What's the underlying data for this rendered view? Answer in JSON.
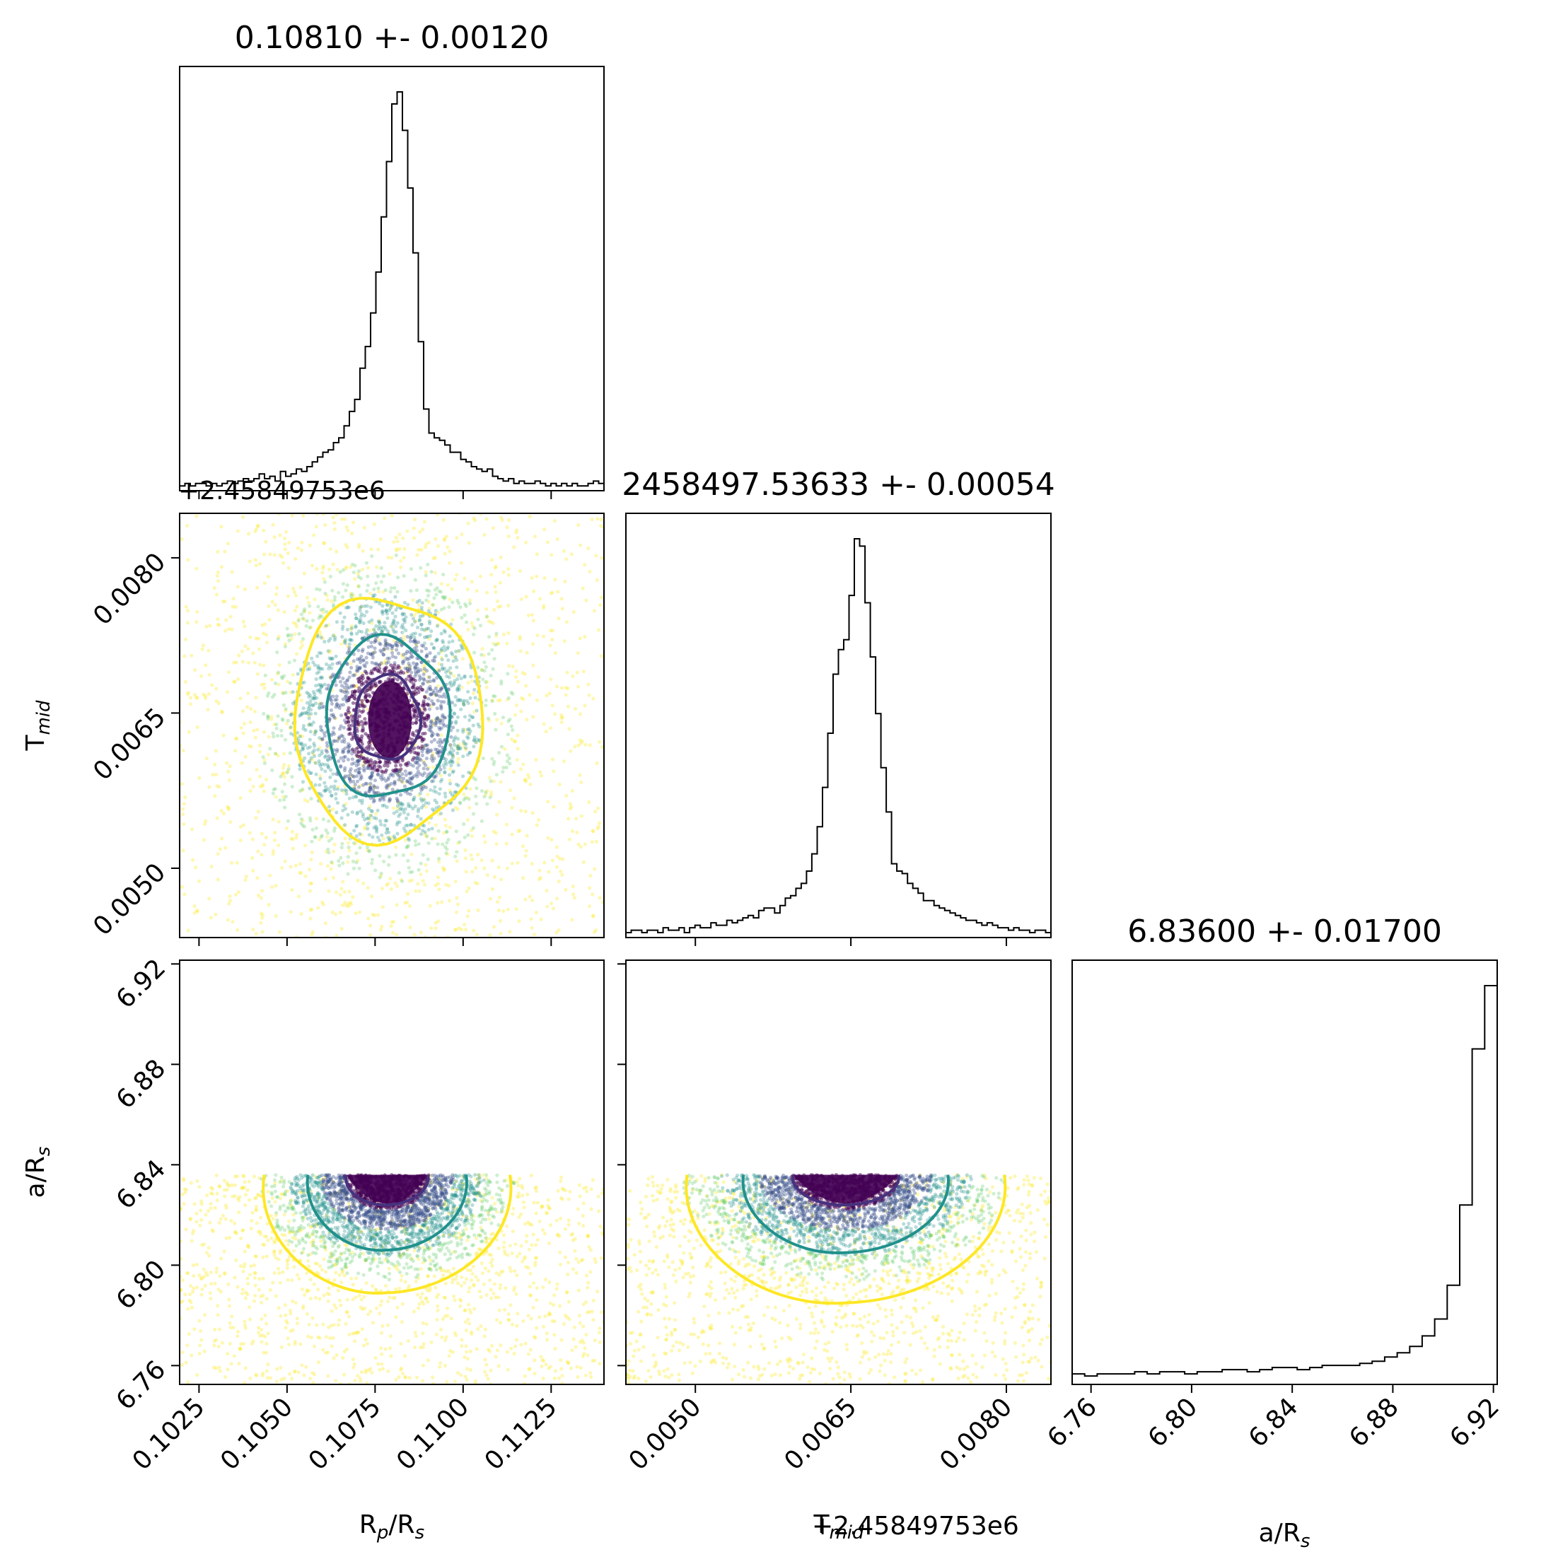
{
  "chart_data": {
    "type": "corner",
    "parameters": [
      {
        "key": "rprs",
        "label_main": "R",
        "label_sub1": "p",
        "label_mid": "/R",
        "label_sub2": "s"
      },
      {
        "key": "tmid",
        "label_main": "T",
        "label_sub1": "mid",
        "label_mid": "",
        "label_sub2": ""
      },
      {
        "key": "ars",
        "label_main": "a/R",
        "label_sub1": "s",
        "label_mid": "",
        "label_sub2": ""
      }
    ],
    "titles": [
      "0.10810 +- 0.00120",
      "2458497.53633 +- 0.00054",
      "6.83600 +- 0.01700"
    ],
    "offset_text": "+2.45849753e6",
    "ranges": {
      "rprs": [
        0.10195,
        0.114
      ],
      "tmid": [
        0.00433,
        0.00843
      ],
      "ars": [
        6.7525,
        6.9215
      ]
    },
    "ticks": {
      "rprs": [
        "0.1025",
        "0.1050",
        "0.1075",
        "0.1100",
        "0.1125"
      ],
      "tmid": [
        "0.0050",
        "0.0065",
        "0.0080"
      ],
      "ars": [
        "6.76",
        "6.80",
        "6.84",
        "6.88",
        "6.92"
      ]
    },
    "histograms": {
      "rprs": {
        "bins": [
          0.10195,
          0.114
        ],
        "counts": [
          2,
          3,
          2,
          3,
          3,
          2,
          3,
          2,
          3,
          4,
          3,
          4,
          5,
          4,
          5,
          7,
          5,
          6,
          4,
          8,
          6,
          7,
          9,
          8,
          10,
          12,
          14,
          16,
          17,
          20,
          22,
          27,
          33,
          38,
          51,
          60,
          74,
          91,
          114,
          137,
          161,
          166,
          150,
          126,
          99,
          62,
          34,
          24,
          22,
          21,
          19,
          16,
          16,
          13,
          12,
          10,
          9,
          8,
          9,
          6,
          5,
          4,
          5,
          3,
          4,
          3,
          3,
          4,
          3,
          2,
          3,
          2,
          3,
          2,
          3,
          2,
          2,
          3,
          4,
          3
        ]
      },
      "tmid": {
        "bins": [
          0.00433,
          0.00843
        ],
        "counts": [
          2,
          3,
          3,
          2,
          3,
          3,
          2,
          4,
          3,
          3,
          4,
          2,
          4,
          5,
          4,
          4,
          6,
          5,
          5,
          7,
          6,
          7,
          8,
          9,
          8,
          11,
          12,
          12,
          10,
          13,
          16,
          17,
          20,
          22,
          27,
          34,
          45,
          61,
          83,
          107,
          117,
          121,
          139,
          162,
          159,
          136,
          114,
          91,
          69,
          51,
          30,
          27,
          26,
          22,
          20,
          18,
          15,
          15,
          13,
          12,
          11,
          10,
          9,
          8,
          7,
          7,
          6,
          5,
          6,
          5,
          4,
          4,
          3,
          4,
          3,
          3,
          2,
          3,
          3,
          2
        ]
      },
      "ars": {
        "bins": [
          6.7525,
          6.9215
        ],
        "counts": [
          5,
          4,
          5,
          5,
          5,
          6,
          5,
          6,
          6,
          5,
          6,
          6,
          7,
          7,
          6,
          7,
          8,
          8,
          7,
          8,
          9,
          9,
          9,
          10,
          11,
          13,
          15,
          18,
          23,
          31,
          47,
          85,
          159,
          189
        ]
      }
    },
    "contours": {
      "levels": [
        "0.5-sigma",
        "1-sigma",
        "2-sigma"
      ],
      "colors": [
        "#46327e",
        "#21918c",
        "#fde725"
      ],
      "rprs_vs_tmid": {
        "center": [
          0.10784,
          0.00645
        ],
        "sigma": [
          0.00155,
          0.00068
        ]
      },
      "rprs_vs_ars": {
        "center_x": 0.10784,
        "sigma_x": 0.00155,
        "peak_y": 6.836,
        "depth_05": 0.012,
        "depth_1": 0.03,
        "depth_2": 0.047
      },
      "tmid_vs_ars": {
        "center_x": 0.00645,
        "sigma_x": 0.00068,
        "peak_y": 6.836,
        "depth_05": 0.012,
        "depth_1": 0.031,
        "depth_2": 0.051
      }
    },
    "grid": false,
    "legend": "none"
  }
}
